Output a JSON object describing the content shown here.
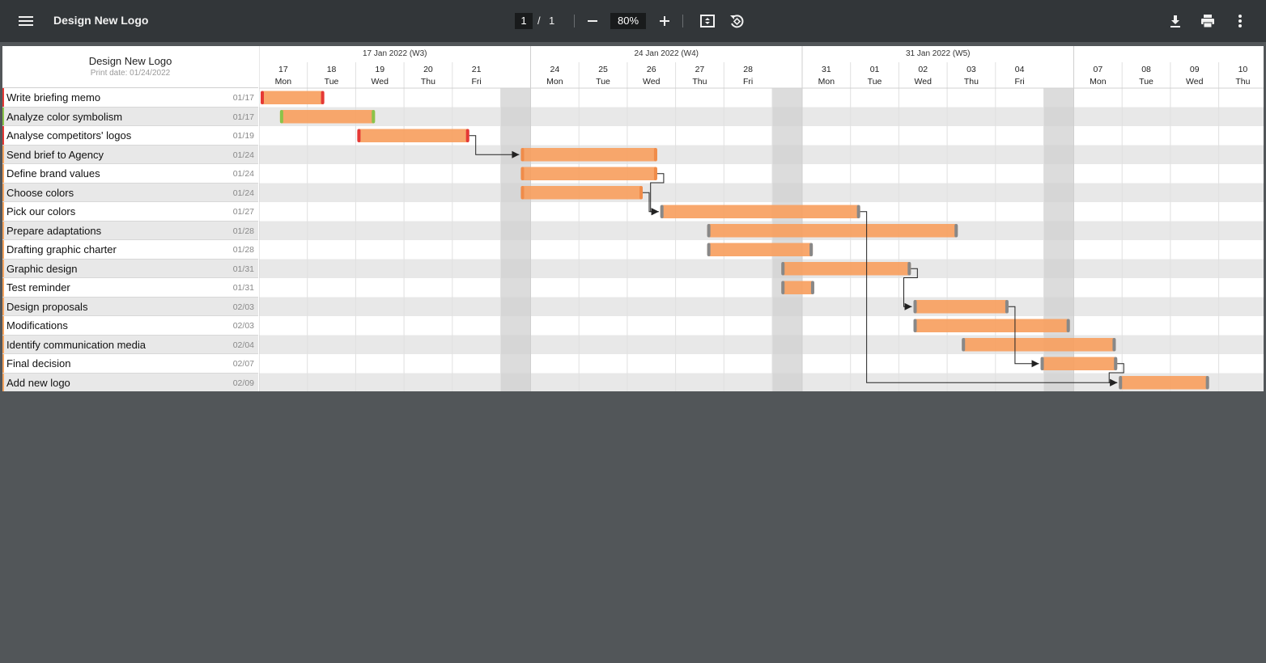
{
  "toolbar": {
    "title": "Design New Logo",
    "page_current": "1",
    "page_separator": "/",
    "page_total": "1",
    "zoom": "80%",
    "icons": [
      "menu-icon",
      "minus-icon",
      "plus-icon",
      "fit-page-icon",
      "rotate-icon",
      "download-icon",
      "print-icon",
      "more-vert-icon"
    ]
  },
  "document": {
    "title": "Design New Logo",
    "print_date": "Print date: 01/24/2022"
  },
  "timeline": {
    "weeks": [
      "17 Jan 2022 (W3)",
      "24 Jan 2022 (W4)",
      "31 Jan 2022 (W5)"
    ],
    "days": [
      {
        "num": "17",
        "name": "Mon"
      },
      {
        "num": "18",
        "name": "Tue"
      },
      {
        "num": "19",
        "name": "Wed"
      },
      {
        "num": "20",
        "name": "Thu"
      },
      {
        "num": "21",
        "name": "Fri"
      },
      {
        "num": "",
        "name": ""
      },
      {
        "num": "24",
        "name": "Mon"
      },
      {
        "num": "25",
        "name": "Tue"
      },
      {
        "num": "26",
        "name": "Wed"
      },
      {
        "num": "27",
        "name": "Thu"
      },
      {
        "num": "28",
        "name": "Fri"
      },
      {
        "num": "",
        "name": ""
      },
      {
        "num": "31",
        "name": "Mon"
      },
      {
        "num": "01",
        "name": "Tue"
      },
      {
        "num": "02",
        "name": "Wed"
      },
      {
        "num": "03",
        "name": "Thu"
      },
      {
        "num": "04",
        "name": "Fri"
      },
      {
        "num": "",
        "name": ""
      },
      {
        "num": "07",
        "name": "Mon"
      },
      {
        "num": "08",
        "name": "Tue"
      },
      {
        "num": "09",
        "name": "Wed"
      },
      {
        "num": "10",
        "name": "Thu"
      }
    ]
  },
  "tasks": [
    {
      "name": "Write briefing memo",
      "date": "01/17",
      "status_color": "#e53935",
      "start": 0,
      "duration": 1.35,
      "cap_color": "#e53935"
    },
    {
      "name": "Analyze color symbolism",
      "date": "01/17",
      "status_color": "#8bc34a",
      "start": 0.4,
      "duration": 2.0,
      "cap_color": "#8bc34a"
    },
    {
      "name": "Analyse competitors' logos",
      "date": "01/19",
      "status_color": "#e53935",
      "start": 2.0,
      "duration": 2.35,
      "cap_color": "#e53935"
    },
    {
      "name": "Send brief to Agency",
      "date": "01/24",
      "status_color": "#f4a460",
      "start": 5.62,
      "duration": 3.0,
      "cap_color": "#f08c4a"
    },
    {
      "name": "Define brand values",
      "date": "01/24",
      "status_color": "#f4a460",
      "start": 5.62,
      "duration": 3.0,
      "cap_color": "#f08c4a"
    },
    {
      "name": "Choose colors",
      "date": "01/24",
      "status_color": "#f4a460",
      "start": 5.62,
      "duration": 2.7,
      "cap_color": "#f08c4a"
    },
    {
      "name": "Pick our colors",
      "date": "01/27",
      "status_color": "#f4a460",
      "start": 8.65,
      "duration": 4.55,
      "cap_color": "#888888"
    },
    {
      "name": "Prepare adaptations",
      "date": "01/28",
      "status_color": "#f4a460",
      "start": 9.62,
      "duration": 5.6,
      "cap_color": "#888888"
    },
    {
      "name": "Drafting graphic charter",
      "date": "01/28",
      "status_color": "#f4a460",
      "start": 9.62,
      "duration": 2.6,
      "cap_color": "#888888"
    },
    {
      "name": "Graphic design",
      "date": "01/31",
      "status_color": "#f4a460",
      "start": 11.25,
      "duration": 3.0,
      "cap_color": "#888888"
    },
    {
      "name": "Test reminder",
      "date": "01/31",
      "status_color": "#f4a460",
      "start": 11.25,
      "duration": 1.0,
      "cap_color": "#888888"
    },
    {
      "name": "Design proposals",
      "date": "02/03",
      "status_color": "#f4a460",
      "start": 14.27,
      "duration": 2.0,
      "cap_color": "#888888"
    },
    {
      "name": "Modifications",
      "date": "02/03",
      "status_color": "#f4a460",
      "start": 14.27,
      "duration": 3.6,
      "cap_color": "#888888"
    },
    {
      "name": "Identify communication media",
      "date": "02/04",
      "status_color": "#f4a460",
      "start": 15.27,
      "duration": 3.6,
      "cap_color": "#888888"
    },
    {
      "name": "Final decision",
      "date": "02/07",
      "status_color": "#f4a460",
      "start": 16.9,
      "duration": 2.0,
      "cap_color": "#888888"
    },
    {
      "name": "Add new logo",
      "date": "02/09",
      "status_color": "#f4a460",
      "start": 18.9,
      "duration": 1.9,
      "cap_color": "#888888"
    }
  ],
  "dependencies": [
    [
      2,
      3
    ],
    [
      4,
      6
    ],
    [
      5,
      6
    ],
    [
      6,
      15
    ],
    [
      9,
      11
    ],
    [
      11,
      14
    ],
    [
      14,
      15
    ]
  ],
  "colors": {
    "bar_fill": "#f7a060",
    "bar_dark": "#ee8e4c",
    "weekend_shade": "#dedede",
    "row_alt": "#e8e8e8"
  }
}
